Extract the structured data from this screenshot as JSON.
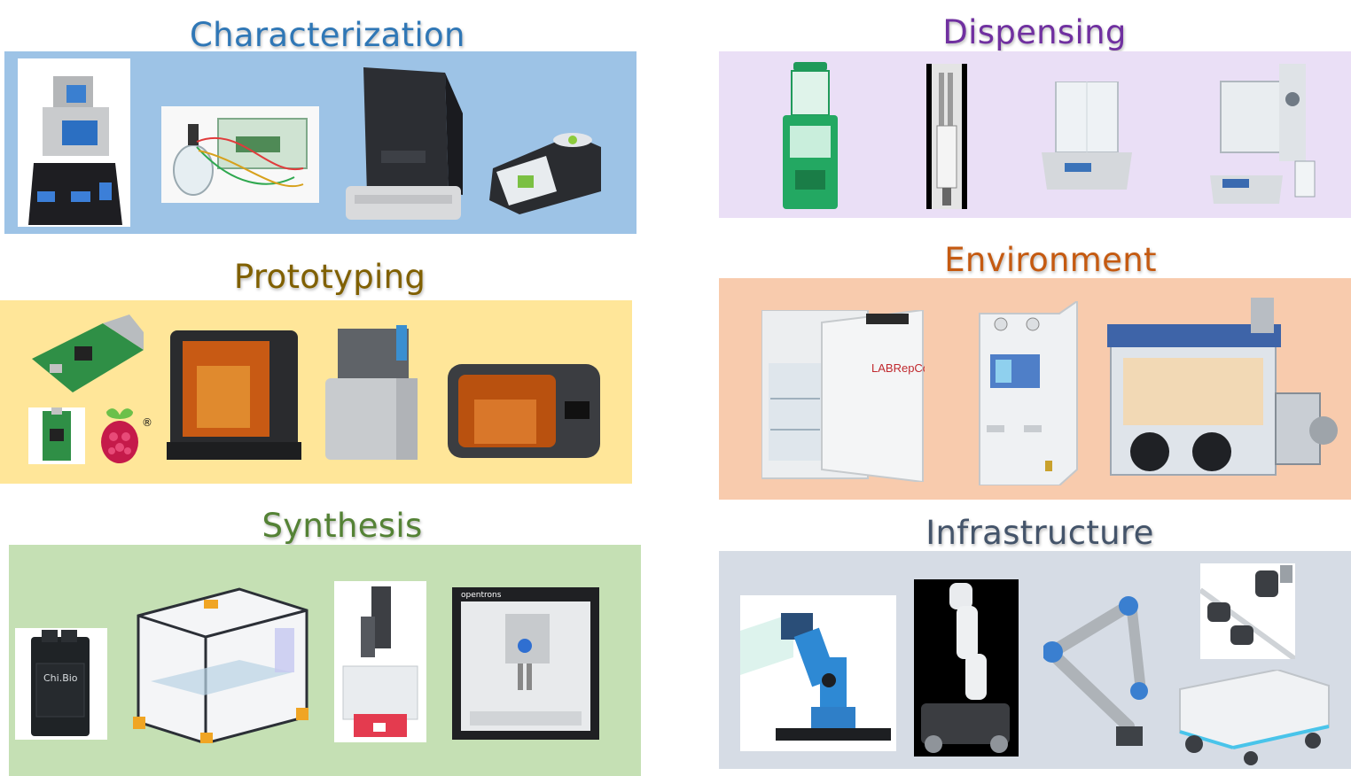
{
  "categories": {
    "characterization": {
      "title": "Characterization",
      "title_color": "#2f77b6",
      "panel_color": "#9dc3e6",
      "items": [
        "open-source-spectrometer",
        "electrochemistry-cell",
        "benchtop-analyzer",
        "touchscreen-analyzer"
      ]
    },
    "dispensing": {
      "title": "Dispensing",
      "title_color": "#7030a0",
      "panel_color": "#eadff6",
      "items": [
        "powder-dispenser",
        "syringe-pump",
        "analytical-balance",
        "automated-weighing-station"
      ]
    },
    "prototyping": {
      "title": "Prototyping",
      "title_color": "#806000",
      "panel_color": "#ffe699",
      "items": [
        "raspberry-pi-board",
        "raspberry-pi-pico",
        "raspberry-pi-logo",
        "resin-3d-printer",
        "wash-station",
        "cure-station"
      ]
    },
    "environment": {
      "title": "Environment",
      "title_color": "#c55a11",
      "panel_color": "#f8cbad",
      "items": [
        "laboratory-incubator",
        "nitrogen-generator",
        "glovebox"
      ]
    },
    "synthesis": {
      "title": "Synthesis",
      "title_color": "#548235",
      "panel_color": "#c5e0b4",
      "items": [
        "chi-bio-bioreactor",
        "gantry-frame",
        "dispensing-robot",
        "liquid-handler"
      ]
    },
    "infrastructure": {
      "title": "Infrastructure",
      "title_color": "#44546a",
      "panel_color": "#d6dce5",
      "items": [
        "desktop-robot-arm",
        "mobile-manipulator",
        "collaborative-robot-arm",
        "gripper-tools",
        "mobile-robot-base"
      ]
    }
  },
  "product_labels": {
    "incubator_brand": "LABRepCo",
    "liquid_handler_brand": "opentrons",
    "bioreactor_brand": "Chi.Bio",
    "registered_mark": "®"
  }
}
